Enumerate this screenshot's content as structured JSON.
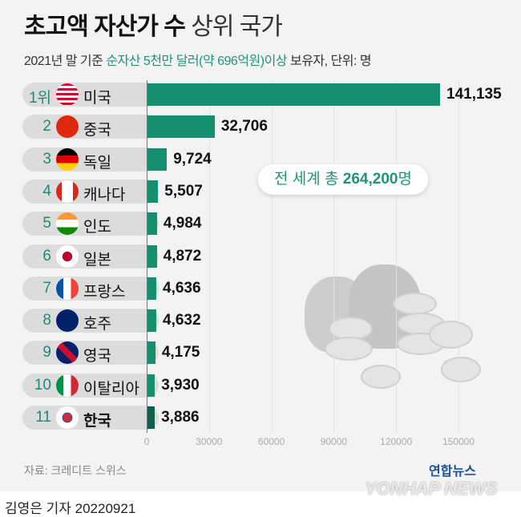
{
  "title_bold": "초고액 자산가 수",
  "title_light": "상위 국가",
  "subtitle_pre": "2021년 말 기준 ",
  "subtitle_hl": "순자산 5천만 달러(약 696억원)이상",
  "subtitle_post": " 보유자, 단위: 명",
  "total_pre": "전 세계 총 ",
  "total_value": "264,200",
  "total_unit": "명",
  "source": "자료: 크레디트 스위스",
  "byline": "김영은 기자  20220921",
  "logo_kr": "연합뉴스",
  "logo_en": "YONHAP NEWS",
  "colors": {
    "bar": "#15906f",
    "highlight": "#0f5e4d",
    "accent": "#1f9479"
  },
  "chart_data": {
    "type": "bar",
    "orientation": "horizontal",
    "title": "초고액 자산가 수 상위 국가",
    "ranks": [
      "1위",
      "2",
      "3",
      "4",
      "5",
      "6",
      "7",
      "8",
      "9",
      "10",
      "11"
    ],
    "categories": [
      "미국",
      "중국",
      "독일",
      "캐나다",
      "인도",
      "일본",
      "프랑스",
      "호주",
      "영국",
      "이탈리아",
      "한국"
    ],
    "flags": [
      "us",
      "cn",
      "de",
      "ca",
      "in",
      "jp",
      "fr",
      "au",
      "gb",
      "it",
      "kr"
    ],
    "values": [
      141135,
      32706,
      9724,
      5507,
      4984,
      4872,
      4636,
      4632,
      4175,
      3930,
      3886
    ],
    "value_labels": [
      "141,135",
      "32,706",
      "9,724",
      "5,507",
      "4,984",
      "4,872",
      "4,636",
      "4,632",
      "4,175",
      "3,930",
      "3,886"
    ],
    "highlight": "한국",
    "xticks": [
      0,
      30000,
      60000,
      90000,
      120000,
      150000
    ],
    "xlim": [
      0,
      150000
    ],
    "grid": true
  }
}
